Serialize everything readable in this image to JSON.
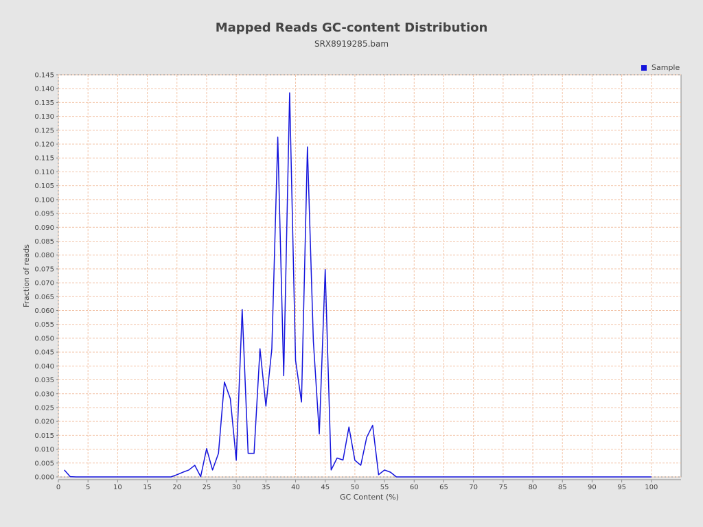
{
  "chart_data": {
    "type": "line",
    "title": "Mapped Reads GC-content Distribution",
    "subtitle": "SRX8919285.bam",
    "xlabel": "GC Content (%)",
    "ylabel": "Fraction of reads",
    "xlim": [
      0,
      105
    ],
    "ylim": [
      0,
      0.145
    ],
    "x_ticks": [
      "0",
      "5",
      "10",
      "15",
      "20",
      "25",
      "30",
      "35",
      "40",
      "45",
      "50",
      "55",
      "60",
      "65",
      "70",
      "75",
      "80",
      "85",
      "90",
      "95",
      "100"
    ],
    "y_ticks": [
      "0.000",
      "0.005",
      "0.010",
      "0.015",
      "0.020",
      "0.025",
      "0.030",
      "0.035",
      "0.040",
      "0.045",
      "0.050",
      "0.055",
      "0.060",
      "0.065",
      "0.070",
      "0.075",
      "0.080",
      "0.085",
      "0.090",
      "0.095",
      "0.100",
      "0.105",
      "0.110",
      "0.115",
      "0.120",
      "0.125",
      "0.130",
      "0.135",
      "0.140",
      "0.145"
    ],
    "grid": true,
    "legend_position": "top-right",
    "series": [
      {
        "name": "Sample",
        "color": "#1414dc",
        "x": [
          1,
          2,
          3,
          4,
          5,
          6,
          7,
          8,
          9,
          10,
          11,
          12,
          13,
          14,
          15,
          16,
          17,
          18,
          19,
          20,
          21,
          22,
          23,
          24,
          25,
          26,
          27,
          28,
          29,
          30,
          31,
          32,
          33,
          34,
          35,
          36,
          37,
          38,
          39,
          40,
          41,
          42,
          43,
          44,
          45,
          46,
          47,
          48,
          49,
          50,
          51,
          52,
          53,
          54,
          55,
          56,
          57,
          58,
          59,
          60,
          61,
          62,
          63,
          64,
          65,
          66,
          67,
          68,
          69,
          70,
          71,
          72,
          73,
          74,
          75,
          76,
          77,
          78,
          79,
          80,
          81,
          82,
          83,
          84,
          85,
          86,
          87,
          88,
          89,
          90,
          91,
          92,
          93,
          94,
          95,
          96,
          97,
          98,
          99,
          100
        ],
        "y": [
          0.0025,
          0.0001,
          0.0,
          0.0,
          0.0,
          0.0,
          0.0,
          0.0,
          0.0,
          0.0,
          0.0,
          0.0,
          0.0,
          0.0,
          0.0,
          0.0,
          0.0,
          0.0,
          0.0,
          0.0008,
          0.0017,
          0.0025,
          0.0042,
          0.0001,
          0.0102,
          0.0025,
          0.0085,
          0.0342,
          0.0282,
          0.006,
          0.0604,
          0.0085,
          0.0085,
          0.0462,
          0.0255,
          0.0462,
          0.1225,
          0.0365,
          0.1385,
          0.042,
          0.027,
          0.119,
          0.049,
          0.0155,
          0.0748,
          0.0025,
          0.0068,
          0.0061,
          0.018,
          0.006,
          0.0042,
          0.0143,
          0.0186,
          0.0008,
          0.0025,
          0.0017,
          0.0,
          0.0,
          0.0,
          0.0,
          0.0,
          0.0,
          0.0,
          0.0,
          0.0,
          0.0,
          0.0,
          0.0,
          0.0,
          0.0,
          0.0,
          0.0,
          0.0,
          0.0,
          0.0,
          0.0,
          0.0,
          0.0,
          0.0,
          0.0,
          0.0,
          0.0,
          0.0,
          0.0,
          0.0,
          0.0,
          0.0,
          0.0,
          0.0,
          0.0,
          0.0,
          0.0,
          0.0,
          0.0,
          0.0,
          0.0,
          0.0,
          0.0,
          0.0,
          0.0
        ]
      }
    ]
  }
}
